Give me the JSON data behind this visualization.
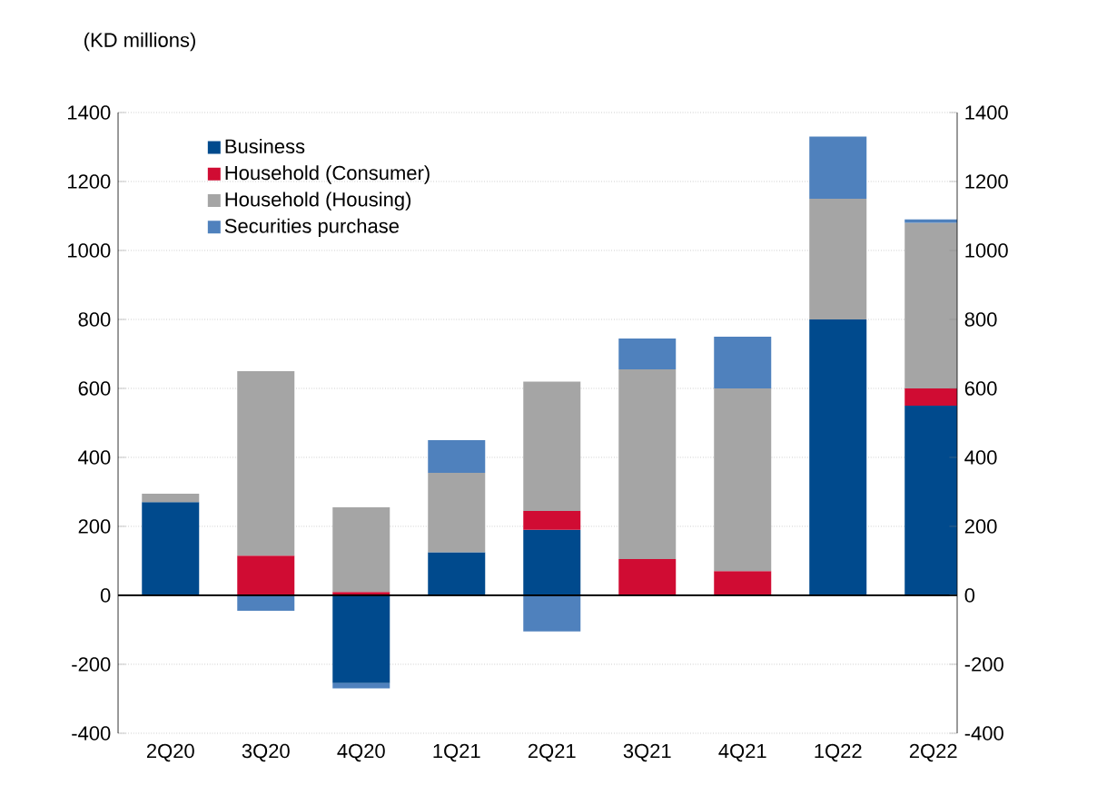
{
  "chart_data": {
    "type": "bar",
    "stacked": true,
    "ylabel": "(KD millions)",
    "categories": [
      "2Q20",
      "3Q20",
      "4Q20",
      "1Q21",
      "2Q21",
      "3Q21",
      "4Q21",
      "1Q22",
      "2Q22"
    ],
    "series": [
      {
        "name": "Business",
        "color": "#004a8d",
        "values": [
          270,
          0,
          -255,
          125,
          190,
          0,
          0,
          800,
          550
        ]
      },
      {
        "name": "Household (Consumer)",
        "color": "#d00c33",
        "values": [
          0,
          115,
          10,
          0,
          55,
          105,
          70,
          0,
          50
        ]
      },
      {
        "name": "Household (Housing)",
        "color": "#a5a5a5",
        "values": [
          25,
          535,
          245,
          230,
          375,
          550,
          530,
          350,
          480
        ]
      },
      {
        "name": "Securities purchase",
        "color": "#4f81bd",
        "values": [
          0,
          -45,
          -15,
          95,
          -105,
          90,
          150,
          180,
          10
        ]
      }
    ],
    "ylim": [
      -400,
      1400
    ],
    "yticks": [
      -400,
      -200,
      0,
      200,
      400,
      600,
      800,
      1000,
      1200,
      1400
    ],
    "y2lim": [
      -400,
      1400
    ],
    "y2ticks": [
      -400,
      -200,
      0,
      200,
      400,
      600,
      800,
      1000,
      1200,
      1400
    ],
    "grid": "y",
    "legend": "top left"
  }
}
